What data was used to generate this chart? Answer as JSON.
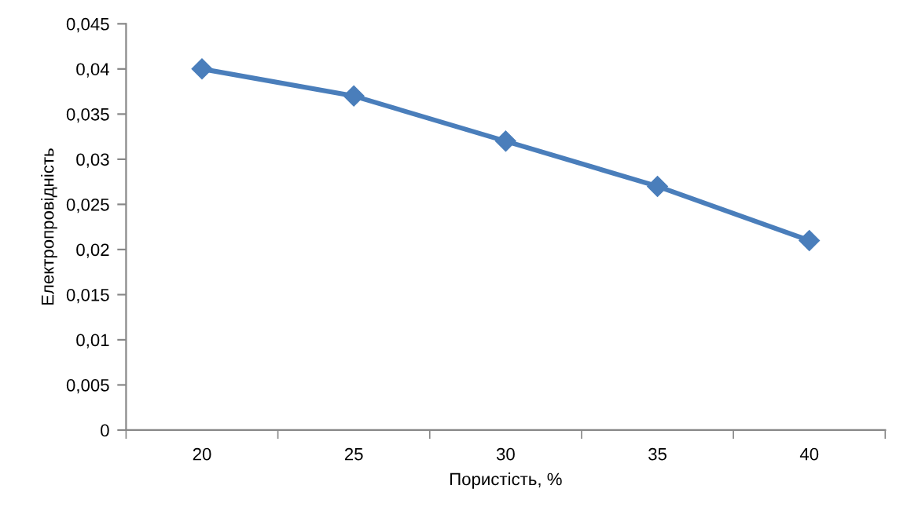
{
  "chart_data": {
    "type": "line",
    "xlabel": "Пористість, %",
    "ylabel": "Електропровідність",
    "categories": [
      "20",
      "25",
      "30",
      "35",
      "40"
    ],
    "series": [
      {
        "color": "#4a7ebb",
        "values": [
          0.04,
          0.037,
          0.032,
          0.027,
          0.021
        ]
      }
    ],
    "ylim": [
      0,
      0.045
    ],
    "yticks": [
      0,
      {
        "value": 0.005,
        "label": "0,005"
      },
      {
        "value": 0.01,
        "label": "0,01"
      },
      {
        "value": 0.015,
        "label": "0,015"
      },
      {
        "value": 0.02,
        "label": "0,02"
      },
      {
        "value": 0.025,
        "label": "0,025"
      },
      {
        "value": 0.03,
        "label": "0,03"
      },
      {
        "value": 0.035,
        "label": "0,035"
      },
      {
        "value": 0.04,
        "label": "0,04"
      },
      {
        "value": 0.045,
        "label": "0,045"
      }
    ],
    "grid": false,
    "legend": false,
    "marker": "diamond",
    "line_style": "solid"
  }
}
